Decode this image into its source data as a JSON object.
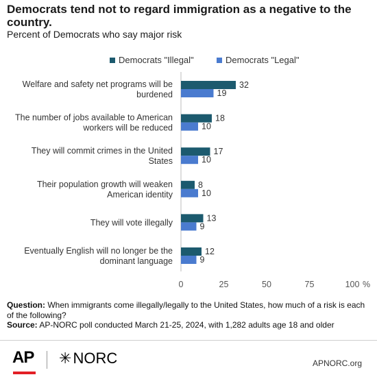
{
  "title": "Democrats tend not to regard immigration as a negative to the country.",
  "subtitle": "Percent of Democrats who say major risk",
  "colors": {
    "illegal": "#1c5a6e",
    "legal": "#4a7bcf"
  },
  "chart_data": {
    "type": "bar",
    "orientation": "horizontal",
    "categories": [
      [
        "Welfare and safety net programs will be",
        "burdened"
      ],
      [
        "The number of jobs available to American",
        "workers will be reduced"
      ],
      [
        "They will commit crimes in the United",
        "States"
      ],
      [
        "Their population growth will weaken",
        "American identity"
      ],
      [
        "They will vote illegally"
      ],
      [
        "Eventually English will no longer be the",
        "dominant language"
      ]
    ],
    "series": [
      {
        "name": "Democrats \"Illegal\"",
        "values": [
          32,
          18,
          17,
          8,
          13,
          12
        ]
      },
      {
        "name": "Democrats \"Legal\"",
        "values": [
          19,
          10,
          10,
          10,
          9,
          9
        ]
      }
    ],
    "xlim": [
      0,
      100
    ],
    "xticks": [
      "0",
      "25",
      "50",
      "75",
      "100"
    ],
    "x_unit": "%",
    "legend": "top-right",
    "grid": false
  },
  "notes": {
    "question_label": "Question:",
    "question_text": " When immigrants come illegally/legally to the United States, how much of a risk is each of the following?",
    "source_label": "Source:",
    "source_text": " AP-NORC poll conducted March 21-25, 2024, with 1,282 adults age 18 and older"
  },
  "footer": {
    "ap_logo": "AP",
    "norc_logo": "NORC",
    "norc_star": "✳",
    "site": "APNORC.org"
  }
}
